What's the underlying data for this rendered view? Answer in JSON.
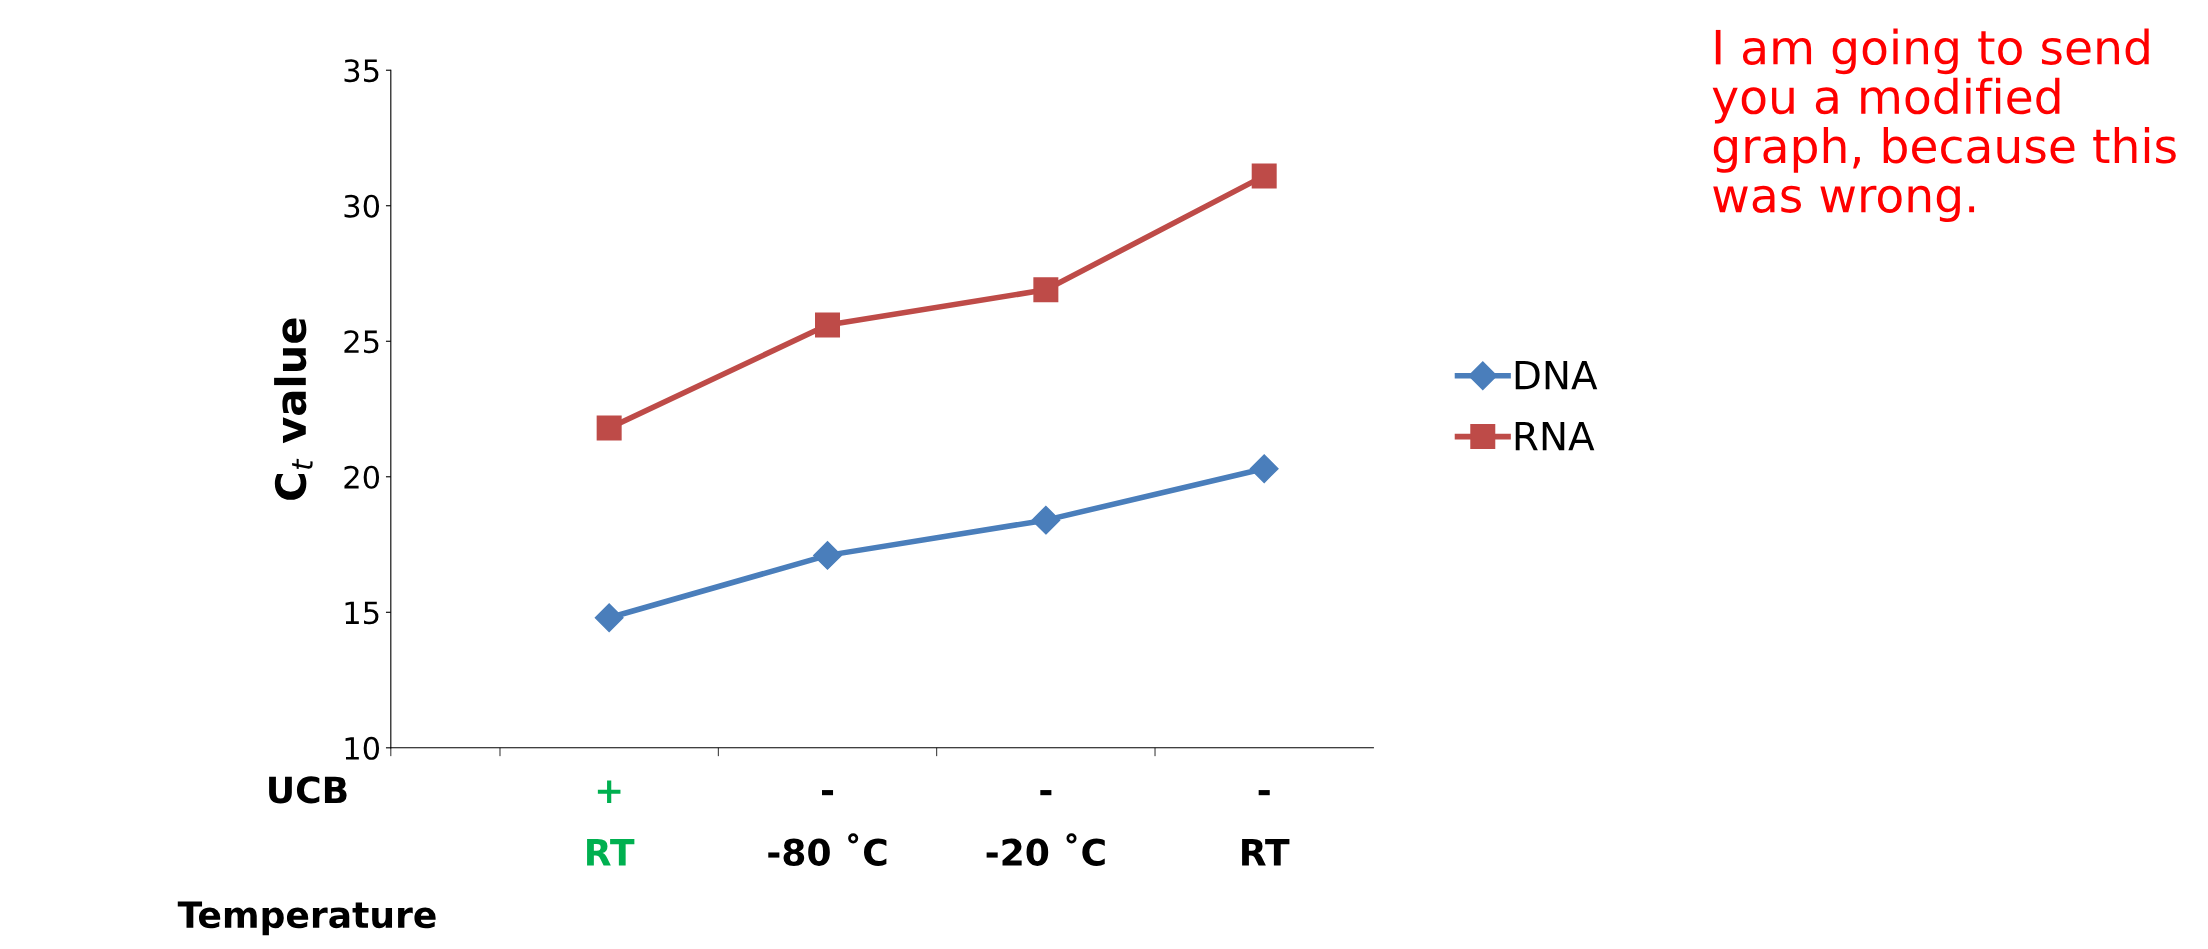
{
  "chart_data": {
    "type": "line",
    "ylabel": "C$_{t}$ value",
    "categories": [
      "+\nRT",
      "-\n-80 ˚C",
      "-\n-20 ˚C",
      "-\nRT"
    ],
    "series": [
      {
        "name": "DNA",
        "color": "#4a7ebb",
        "marker": "diamond",
        "values": [
          14.8,
          17.1,
          18.4,
          20.3
        ]
      },
      {
        "name": "RNA",
        "color": "#be4b48",
        "marker": "square",
        "values": [
          21.8,
          25.6,
          26.9,
          31.1
        ]
      }
    ],
    "ylim": [
      10,
      35
    ],
    "yticks": [
      10,
      15,
      20,
      25,
      30,
      35
    ],
    "grid": false,
    "legend": "right",
    "line_style": "solid",
    "annotations": [
      "UCB\n\nTemperature",
      "I am going to send you a modified graph, because this was wrong."
    ]
  }
}
